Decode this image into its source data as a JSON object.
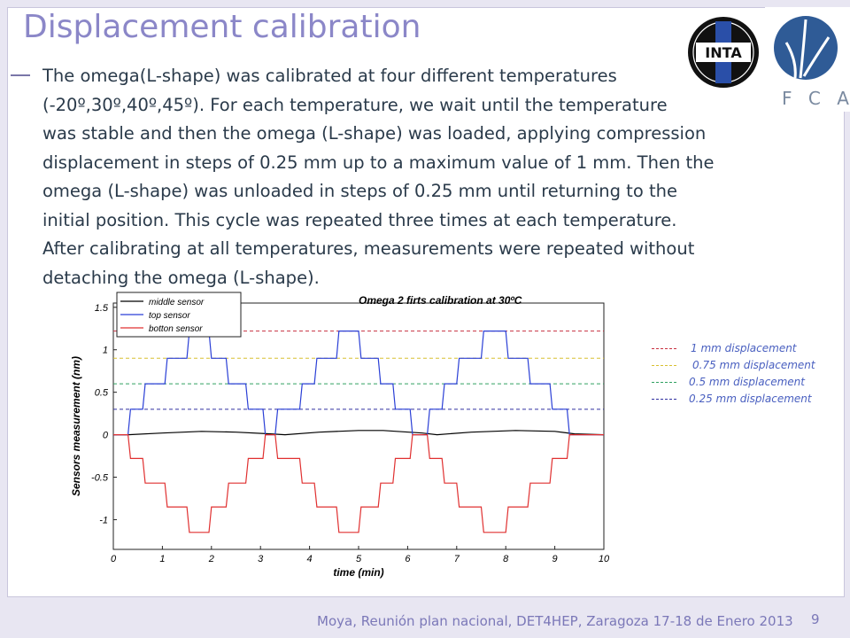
{
  "slide": {
    "title": "Displacement calibration",
    "paragraph_lines": [
      "The omega(L-shape) was calibrated at four different temperatures",
      "(-20º,30º,40º,45º). For each temperature, we wait until the temperature",
      "was stable and then the omega (L-shape) was loaded, applying compression",
      "displacement in steps of 0.25 mm up to a maximum value of 1 mm. Then the",
      "omega (L-shape) was unloaded in steps of 0.25 mm until returning to the",
      "initial position. This cycle was repeated three times at each temperature.",
      "After calibrating at all temperatures, measurements were repeated without",
      "detaching the omega (L-shape)."
    ],
    "footer": "Moya,  Reunión plan nacional, DET4HEP, Zaragoza 17-18 de Enero  2013",
    "page_number": "9",
    "logos": {
      "inta": {
        "text": "INTA",
        "icon": "inta-logo"
      },
      "ifca": {
        "text": "i F C A",
        "icon": "ifca-logo"
      }
    }
  },
  "chart_data": {
    "type": "line",
    "title": "Omega 2 firts calibration at 30ºC",
    "xlabel": "time (min)",
    "ylabel": "Sensors measurement (nm)",
    "xlim": [
      0,
      10
    ],
    "ylim": [
      -1.35,
      1.55
    ],
    "xticks": [
      0,
      1,
      2,
      3,
      4,
      5,
      6,
      7,
      8,
      9,
      10
    ],
    "yticks": [
      -1,
      -0.5,
      0,
      0.5,
      1,
      1.5
    ],
    "ytick_labels": [
      "-1",
      "-0.5",
      "0",
      "0.5",
      "1",
      "1.5"
    ],
    "grid": false,
    "legend_position": "top-left",
    "series": [
      {
        "name": "middle sensor",
        "color": "#000000",
        "x": [
          0,
          0.3,
          1,
          1.8,
          2.5,
          3.2,
          3.5,
          4.2,
          5.0,
          5.5,
          6.3,
          6.6,
          7.3,
          8.2,
          9.0,
          9.4,
          10
        ],
        "y": [
          0,
          0,
          0.02,
          0.04,
          0.03,
          0.01,
          0,
          0.03,
          0.05,
          0.05,
          0.02,
          0,
          0.03,
          0.05,
          0.04,
          0.01,
          0
        ]
      },
      {
        "name": "top sensor",
        "color": "#2a3fd6",
        "x": [
          0,
          0.3,
          0.35,
          0.6,
          0.65,
          1.05,
          1.1,
          1.5,
          1.55,
          1.95,
          2.0,
          2.3,
          2.35,
          2.7,
          2.75,
          3.05,
          3.1,
          3.3,
          3.35,
          3.8,
          3.85,
          4.1,
          4.15,
          4.55,
          4.6,
          5.0,
          5.05,
          5.4,
          5.45,
          5.7,
          5.75,
          6.05,
          6.1,
          6.4,
          6.45,
          6.7,
          6.75,
          7.0,
          7.05,
          7.5,
          7.55,
          8.0,
          8.05,
          8.45,
          8.5,
          8.9,
          8.95,
          9.25,
          9.3,
          9.6,
          9.65,
          10
        ],
        "y": [
          0,
          0,
          0.3,
          0.3,
          0.6,
          0.6,
          0.9,
          0.9,
          1.22,
          1.22,
          0.9,
          0.9,
          0.6,
          0.6,
          0.3,
          0.3,
          0,
          0,
          0.3,
          0.3,
          0.6,
          0.6,
          0.9,
          0.9,
          1.22,
          1.22,
          0.9,
          0.9,
          0.6,
          0.6,
          0.3,
          0.3,
          0,
          0,
          0.3,
          0.3,
          0.6,
          0.6,
          0.9,
          0.9,
          1.22,
          1.22,
          0.9,
          0.9,
          0.6,
          0.6,
          0.3,
          0.3,
          0,
          0,
          0,
          0
        ]
      },
      {
        "name": "botton sensor",
        "color": "#e03030",
        "x": [
          0,
          0.3,
          0.35,
          0.6,
          0.65,
          1.05,
          1.1,
          1.5,
          1.55,
          1.95,
          2.0,
          2.3,
          2.35,
          2.7,
          2.75,
          3.05,
          3.1,
          3.3,
          3.35,
          3.8,
          3.85,
          4.1,
          4.15,
          4.55,
          4.6,
          5.0,
          5.05,
          5.4,
          5.45,
          5.7,
          5.75,
          6.05,
          6.1,
          6.4,
          6.45,
          6.7,
          6.75,
          7.0,
          7.05,
          7.5,
          7.55,
          8.0,
          8.05,
          8.45,
          8.5,
          8.9,
          8.95,
          9.25,
          9.3,
          9.6,
          9.65,
          10
        ],
        "y": [
          0,
          0,
          -0.28,
          -0.28,
          -0.57,
          -0.57,
          -0.85,
          -0.85,
          -1.15,
          -1.15,
          -0.85,
          -0.85,
          -0.57,
          -0.57,
          -0.28,
          -0.28,
          0,
          0,
          -0.28,
          -0.28,
          -0.57,
          -0.57,
          -0.85,
          -0.85,
          -1.15,
          -1.15,
          -0.85,
          -0.85,
          -0.57,
          -0.57,
          -0.28,
          -0.28,
          0,
          0,
          -0.28,
          -0.28,
          -0.57,
          -0.57,
          -0.85,
          -0.85,
          -1.15,
          -1.15,
          -0.85,
          -0.85,
          -0.57,
          -0.57,
          -0.28,
          -0.28,
          0,
          0,
          0,
          0
        ]
      }
    ],
    "reference_lines": [
      {
        "label": "1 mm displacement",
        "y": 1.22,
        "color": "#c83040"
      },
      {
        "label": "0.75 mm displacement",
        "y": 0.9,
        "color": "#d8c030"
      },
      {
        "label": "0.5 mm displacement",
        "y": 0.6,
        "color": "#30a060"
      },
      {
        "label": "0.25 mm displacement",
        "y": 0.3,
        "color": "#3030a0"
      }
    ]
  }
}
